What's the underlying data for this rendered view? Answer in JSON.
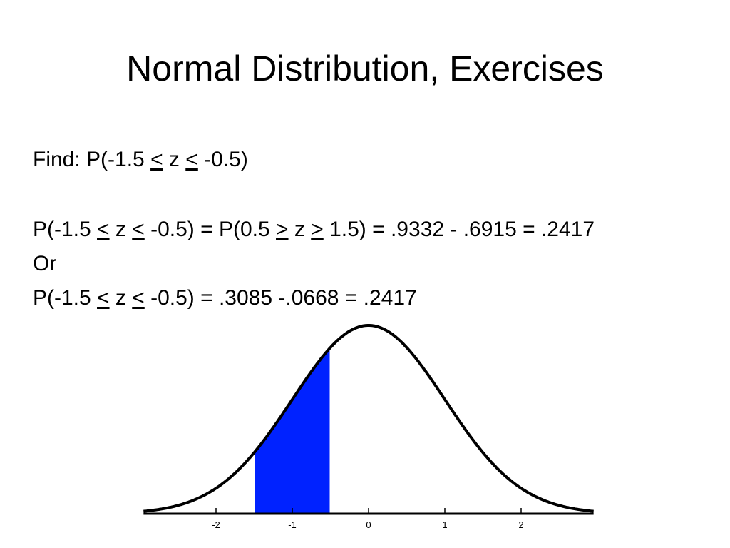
{
  "slide": {
    "title": "Normal Distribution, Exercises",
    "find_prefix": "Find: P(-1.5 ",
    "find_rel_1": "<",
    "find_mid": " z ",
    "find_rel_2": "<",
    "find_suffix": " -0.5)",
    "eq1_prefix": "P(-1.5 ",
    "eq1_rel_1": "<",
    "eq1_mid_1": " z ",
    "eq1_rel_2": "<",
    "eq1_mid_2": " -0.5) = P(0.5 ",
    "eq1_rel_3": ">",
    "eq1_mid_3": " z ",
    "eq1_rel_4": ">",
    "eq1_suffix": " 1.5) = .9332 - .6915 = .2417",
    "or_text": "Or",
    "eq2_prefix": "P(-1.5 ",
    "eq2_rel_1": "<",
    "eq2_mid": " z ",
    "eq2_rel_2": "<",
    "eq2_suffix": " -0.5) = .3085 -.0668 = .2417"
  },
  "chart_data": {
    "type": "area",
    "title": "",
    "xlabel": "",
    "ylabel": "",
    "curve": "standard normal density",
    "x_ticks": [
      -2,
      -1,
      0,
      1,
      2
    ],
    "tick_labels": [
      "-2",
      "-1",
      "0",
      "1",
      "2"
    ],
    "shaded_interval": [
      -1.5,
      -0.5
    ],
    "shade_color": "#0022ff",
    "curve_color": "#000000"
  }
}
